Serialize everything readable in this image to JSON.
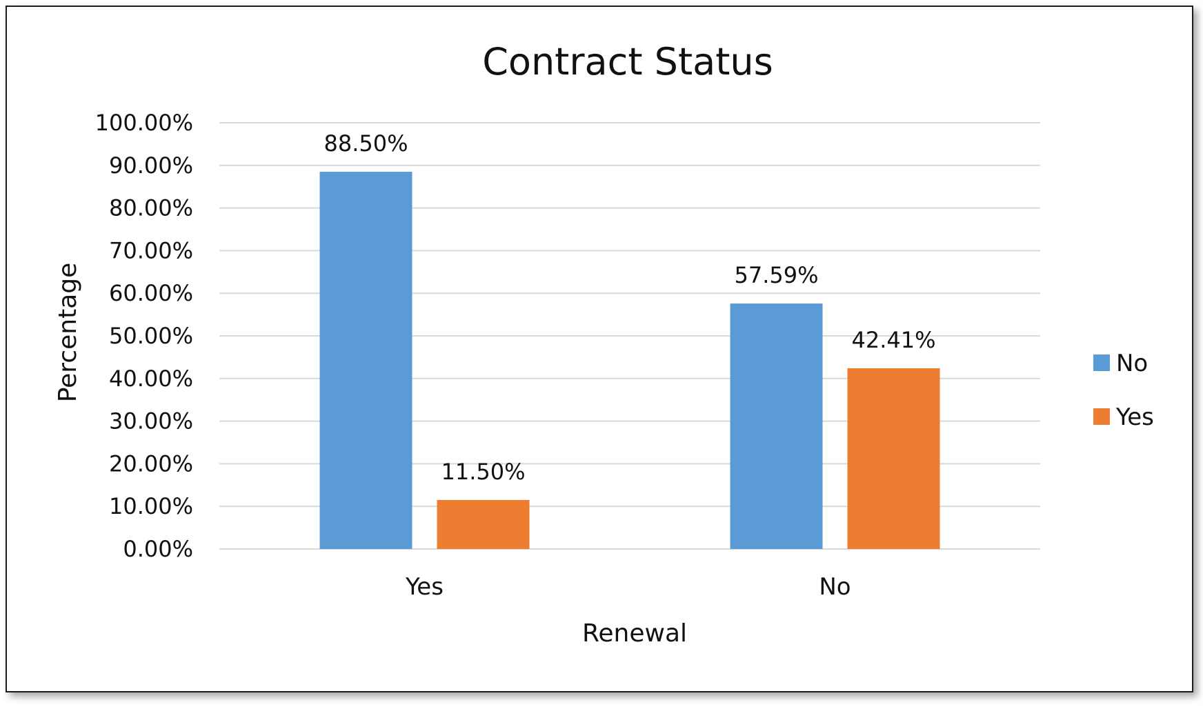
{
  "chart_data": {
    "type": "bar",
    "title": "Contract Status",
    "xlabel": "Renewal",
    "ylabel": "Percentage",
    "categories": [
      "Yes",
      "No"
    ],
    "series": [
      {
        "name": "No",
        "color": "#5B9BD5",
        "values": [
          88.5,
          57.59
        ],
        "labels": [
          "88.50%",
          "57.59%"
        ]
      },
      {
        "name": "Yes",
        "color": "#ED7D31",
        "values": [
          11.5,
          42.41
        ],
        "labels": [
          "11.50%",
          "42.41%"
        ]
      }
    ],
    "ylim": [
      0,
      100
    ],
    "yticks": [
      {
        "value": 0,
        "label": "0.00%"
      },
      {
        "value": 10,
        "label": "10.00%"
      },
      {
        "value": 20,
        "label": "20.00%"
      },
      {
        "value": 30,
        "label": "30.00%"
      },
      {
        "value": 40,
        "label": "40.00%"
      },
      {
        "value": 50,
        "label": "50.00%"
      },
      {
        "value": 60,
        "label": "60.00%"
      },
      {
        "value": 70,
        "label": "70.00%"
      },
      {
        "value": 80,
        "label": "80.00%"
      },
      {
        "value": 90,
        "label": "90.00%"
      },
      {
        "value": 100,
        "label": "100.00%"
      }
    ],
    "grid": true,
    "gridColor": "#D9D9D9",
    "legend": "right"
  }
}
